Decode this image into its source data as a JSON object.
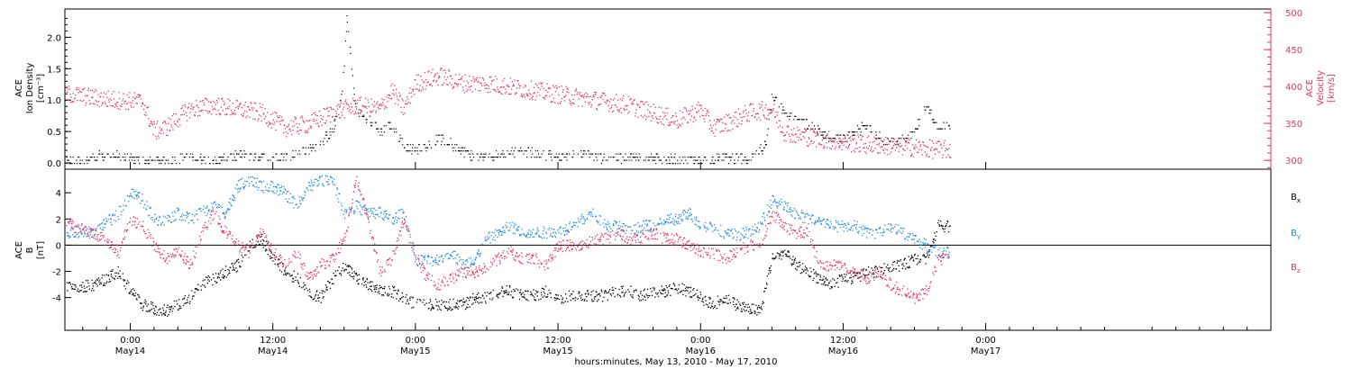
{
  "colors": {
    "density": "#000000",
    "velocity": "#e83162",
    "bx": "#000000",
    "by": "#1e88e5",
    "bz": "#e83162",
    "axis": "#000000"
  },
  "xaxis": {
    "range_hours": [
      -5.5,
      96
    ],
    "ticks": [
      {
        "h": 0,
        "time": "0:00",
        "date": "May14"
      },
      {
        "h": 12,
        "time": "12:00",
        "date": "May14"
      },
      {
        "h": 24,
        "time": "0:00",
        "date": "May15"
      },
      {
        "h": 36,
        "time": "12:00",
        "date": "May15"
      },
      {
        "h": 48,
        "time": "0:00",
        "date": "May16"
      },
      {
        "h": 60,
        "time": "12:00",
        "date": "May16"
      },
      {
        "h": 72,
        "time": "0:00",
        "date": "May17"
      }
    ],
    "title": "hours:minutes, May 13, 2010 - May 17, 2010"
  },
  "panel_top": {
    "left_label_lines": [
      "ACE",
      "Ion Density",
      "[cm⁻³]"
    ],
    "right_label_lines": [
      "ACE",
      "Velocity",
      "[km/s]"
    ],
    "left_ylim": [
      -0.1,
      2.45
    ],
    "left_ticks": [
      "0.0",
      "0.5",
      "1.0",
      "1.5",
      "2.0"
    ],
    "right_ylim": [
      288,
      505
    ],
    "right_ticks": [
      "300",
      "350",
      "400",
      "450",
      "500"
    ]
  },
  "panel_bottom": {
    "left_label_lines": [
      "ACE",
      "B",
      "[nT]"
    ],
    "ylim": [
      -6.5,
      5.8
    ],
    "ticks": [
      "-4",
      "-2",
      "0",
      "2",
      "4"
    ],
    "legend": [
      "Bₓ",
      "Bᵧ",
      "B_z"
    ],
    "legend_main": [
      "B",
      "B",
      "B"
    ],
    "legend_sub": [
      "x",
      "y",
      "z"
    ]
  },
  "chart_data": [
    {
      "type": "scatter",
      "panel": "top",
      "name": "",
      "x_units": "hours since 2010-05-13 00:00 (axis labelled in date/time)",
      "density": {
        "x": [
          -5,
          -3,
          -1,
          1,
          3,
          5,
          7,
          9,
          11,
          13,
          14,
          15,
          16,
          17,
          17.8,
          18.2,
          19,
          20,
          21,
          22,
          23,
          24,
          25,
          26,
          27,
          28,
          29,
          30,
          32,
          34,
          36,
          38,
          40,
          42,
          44,
          46,
          48,
          50,
          52,
          53.5,
          54,
          55,
          56,
          57,
          58,
          59,
          60,
          62,
          64,
          66,
          67,
          68
        ],
        "y": [
          0.02,
          0.1,
          0.12,
          0.02,
          0.05,
          0.1,
          0.05,
          0.12,
          0.1,
          0.1,
          0.15,
          0.2,
          0.35,
          0.5,
          1.1,
          2.3,
          0.8,
          0.7,
          0.5,
          0.6,
          0.3,
          0.2,
          0.3,
          0.4,
          0.3,
          0.2,
          0.1,
          0.1,
          0.2,
          0.15,
          0.1,
          0.15,
          0.08,
          0.1,
          0.1,
          0.05,
          0.05,
          0.1,
          0.05,
          0.3,
          1.1,
          0.8,
          0.7,
          0.6,
          0.5,
          0.4,
          0.4,
          0.6,
          0.3,
          0.5,
          0.9,
          0.6
        ]
      },
      "velocity": {
        "x": [
          -5,
          -3,
          -1,
          1,
          2,
          3,
          5,
          7,
          9,
          11,
          13,
          15,
          17,
          19,
          21,
          22,
          23,
          24,
          26,
          28,
          30,
          32,
          34,
          36,
          38,
          40,
          42,
          44,
          46,
          48,
          49,
          50,
          52,
          54,
          55,
          56,
          58,
          60,
          62,
          64,
          66,
          68
        ],
        "y": [
          390,
          385,
          382,
          380,
          340,
          345,
          370,
          375,
          370,
          365,
          345,
          350,
          365,
          375,
          370,
          395,
          370,
          405,
          415,
          405,
          405,
          400,
          395,
          390,
          385,
          380,
          375,
          365,
          355,
          370,
          345,
          350,
          365,
          370,
          340,
          335,
          330,
          325,
          322,
          320,
          318,
          315
        ]
      }
    },
    {
      "type": "scatter",
      "panel": "bottom",
      "ylabel": "B [nT]",
      "x": [
        -5,
        -3,
        -1,
        0,
        1,
        2,
        3,
        4,
        5,
        6,
        7,
        8,
        9,
        10,
        11,
        12,
        13,
        14,
        15,
        16,
        17,
        18,
        19,
        20,
        21,
        22,
        23,
        24,
        25,
        26,
        27,
        28,
        29,
        30,
        31,
        32,
        33,
        34,
        35,
        36,
        37,
        38,
        39,
        40,
        41,
        42,
        43,
        44,
        45,
        46,
        47,
        48,
        49,
        50,
        51,
        52,
        53,
        54,
        55,
        56,
        57,
        58,
        59,
        60,
        61,
        62,
        63,
        64,
        65,
        66,
        67,
        68
      ],
      "series": [
        {
          "name": "Bₓ",
          "values": [
            -3.2,
            -3.0,
            -2.0,
            -3.5,
            -4.5,
            -4.8,
            -5.0,
            -4.5,
            -4.0,
            -3.0,
            -2.5,
            -2.0,
            -1.5,
            0.0,
            0.5,
            -1.0,
            -2.0,
            -2.5,
            -3.5,
            -4.0,
            -2.5,
            -1.5,
            -2.5,
            -3.0,
            -3.5,
            -3.5,
            -4.0,
            -4.5,
            -4.5,
            -4.5,
            -4.5,
            -4.5,
            -4.0,
            -4.0,
            -3.5,
            -3.5,
            -3.8,
            -3.8,
            -3.5,
            -4.0,
            -3.8,
            -3.8,
            -3.8,
            -3.8,
            -3.5,
            -3.5,
            -3.8,
            -3.5,
            -3.5,
            -3.2,
            -3.5,
            -4.0,
            -4.5,
            -4.0,
            -4.5,
            -4.8,
            -5.0,
            -1.0,
            -0.5,
            -1.5,
            -2.0,
            -2.5,
            -3.0,
            -2.5,
            -2.5,
            -2.0,
            -2.0,
            -1.5,
            -1.5,
            -1.0,
            -1.0,
            1.5
          ]
        },
        {
          "name": "Bᵧ",
          "values": [
            1.0,
            1.0,
            2.5,
            4.0,
            3.5,
            2.0,
            2.0,
            2.5,
            2.0,
            2.5,
            3.0,
            2.5,
            4.5,
            5.0,
            4.5,
            4.5,
            4.0,
            3.0,
            4.5,
            5.0,
            5.0,
            2.5,
            3.0,
            2.5,
            2.5,
            2.0,
            2.5,
            -1.0,
            -1.2,
            -1.0,
            -0.5,
            -1.5,
            -1.0,
            0.5,
            1.0,
            1.5,
            1.0,
            1.0,
            1.0,
            1.0,
            1.5,
            2.0,
            2.5,
            1.5,
            1.5,
            1.0,
            1.5,
            1.5,
            2.0,
            2.0,
            2.5,
            1.5,
            1.5,
            1.0,
            0.8,
            1.0,
            1.5,
            3.5,
            3.0,
            2.5,
            2.0,
            2.0,
            1.5,
            1.5,
            1.5,
            1.0,
            1.0,
            1.5,
            1.0,
            0.5,
            0.0,
            -0.5
          ]
        },
        {
          "name": "B_z",
          "values": [
            1.5,
            1.0,
            -0.5,
            2.0,
            1.5,
            0.0,
            -1.0,
            -0.5,
            -1.5,
            1.0,
            2.5,
            1.0,
            0.0,
            -0.5,
            1.0,
            -0.5,
            -1.5,
            -0.5,
            -2.5,
            -1.5,
            -1.0,
            0.5,
            5.0,
            2.0,
            -2.0,
            -1.0,
            2.0,
            -1.0,
            -2.5,
            -3.0,
            -2.5,
            -2.0,
            -2.0,
            -1.5,
            -1.0,
            -0.5,
            -1.0,
            -1.0,
            -1.5,
            0.0,
            0.0,
            0.0,
            0.5,
            0.5,
            1.0,
            0.5,
            0.5,
            1.0,
            0.5,
            0.5,
            0.0,
            -0.5,
            -0.5,
            -1.0,
            -0.5,
            0.0,
            0.0,
            2.5,
            1.5,
            1.0,
            1.0,
            -1.5,
            -1.5,
            -1.5,
            -2.0,
            -2.5,
            -2.0,
            -3.0,
            -3.5,
            -4.0,
            -3.5,
            -1.0
          ]
        }
      ]
    }
  ]
}
